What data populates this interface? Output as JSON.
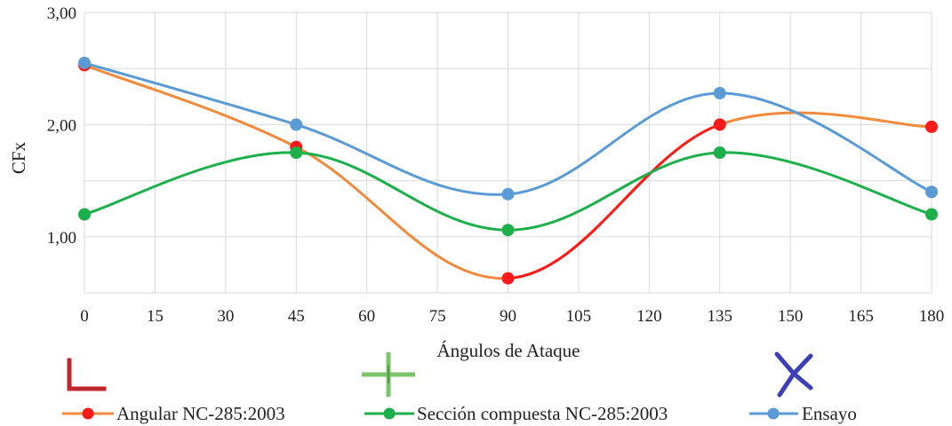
{
  "chart_data": {
    "type": "line",
    "xlabel": "Ángulos de Ataque",
    "ylabel": "CFx",
    "xlim": [
      0,
      180
    ],
    "ylim": [
      0.5,
      3.0
    ],
    "x_ticks": [
      "0",
      "15",
      "30",
      "45",
      "60",
      "75",
      "90",
      "105",
      "120",
      "135",
      "150",
      "165",
      "180"
    ],
    "y_ticks": [
      {
        "value": 1.0,
        "label": "1,00"
      },
      {
        "value": 2.0,
        "label": "2,00"
      },
      {
        "value": 3.0,
        "label": "3,00"
      }
    ],
    "grid": true,
    "legend_position": "bottom",
    "x": [
      0,
      45,
      90,
      135,
      180
    ],
    "series": [
      {
        "name": "Angular NC-285:2003",
        "values": [
          2.53,
          1.8,
          0.63,
          2.0,
          1.98
        ],
        "line_color": "#f08a3c",
        "marker_color": "#ff1a1a",
        "highlight_color": "#ff1a1a"
      },
      {
        "name": "Sección compuesta NC-285:2003",
        "values": [
          1.2,
          1.75,
          1.06,
          1.75,
          1.2
        ],
        "line_color": "#1cb04a",
        "marker_color": "#1cb04a"
      },
      {
        "name": "Ensayo",
        "values": [
          2.55,
          2.0,
          1.38,
          2.28,
          1.4
        ],
        "line_color": "#5a9bd5",
        "marker_color": "#5a9bd5"
      }
    ],
    "legend_symbols": [
      {
        "icon": "red-corner-icon",
        "color": "#c0272d"
      },
      {
        "icon": "green-plus-icon",
        "color": "#7cc46c"
      },
      {
        "icon": "blue-x-icon",
        "color": "#3a3fb5"
      }
    ]
  }
}
